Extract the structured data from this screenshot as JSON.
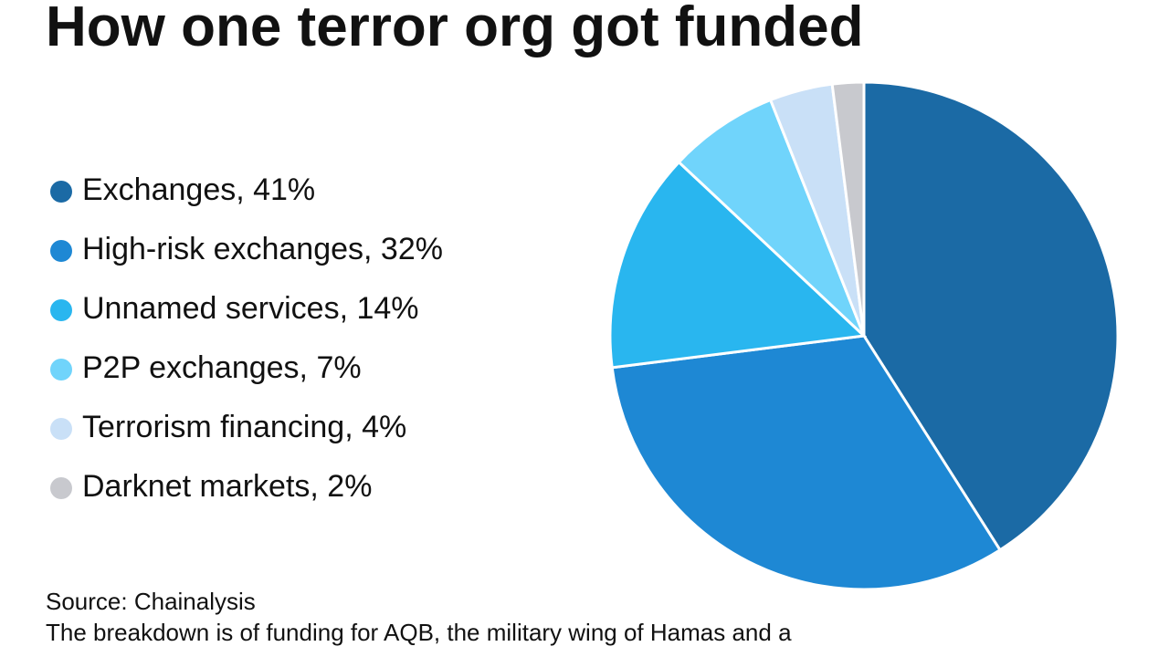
{
  "chart_data": {
    "type": "pie",
    "title": "How one terror org got funded",
    "categories": [
      "Exchanges, 41%",
      "High-risk exchanges, 32%",
      "Unnamed services, 14%",
      "P2P exchanges, 7%",
      "Terrorism financing, 4%",
      "Darknet markets, 2%"
    ],
    "values": [
      41,
      32,
      14,
      7,
      4,
      2
    ],
    "colors": [
      "#1b6aa5",
      "#1e88d4",
      "#29b6ef",
      "#70d4fb",
      "#c9e0f7",
      "#c8c9ce"
    ],
    "source": "Source: Chainalysis",
    "note": "The breakdown is of funding for AQB, the military wing of Hamas and a"
  }
}
